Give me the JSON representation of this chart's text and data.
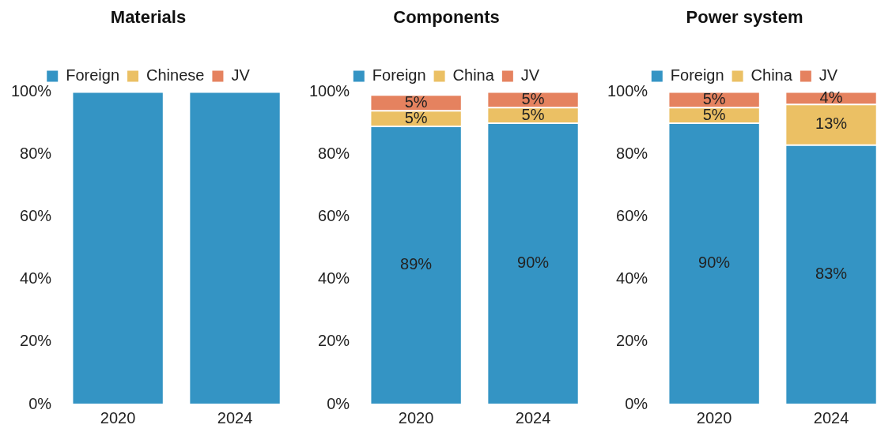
{
  "chart_data": [
    {
      "type": "bar",
      "title": "Materials",
      "categories": [
        "2020",
        "2024"
      ],
      "stacked": true,
      "legend": "top",
      "grid": false,
      "ylim": [
        0,
        100
      ],
      "yticks": [
        {
          "value": 0,
          "label": "0%"
        },
        {
          "value": 20,
          "label": "20%"
        },
        {
          "value": 40,
          "label": "40%"
        },
        {
          "value": 60,
          "label": "60%"
        },
        {
          "value": 80,
          "label": "80%"
        },
        {
          "value": 100,
          "label": "100%"
        }
      ],
      "series": [
        {
          "name": "Foreign",
          "color": "#3494c4",
          "values": [
            100,
            100
          ]
        },
        {
          "name": "Chinese",
          "color": "#ebc064",
          "values": [
            0,
            0
          ]
        },
        {
          "name": "JV",
          "color": "#e5825f",
          "values": [
            0,
            0
          ]
        }
      ]
    },
    {
      "type": "bar",
      "title": "Components",
      "categories": [
        "2020",
        "2024"
      ],
      "stacked": true,
      "legend": "top",
      "grid": false,
      "ylim": [
        0,
        100
      ],
      "yticks": [
        {
          "value": 0,
          "label": "0%"
        },
        {
          "value": 20,
          "label": "20%"
        },
        {
          "value": 40,
          "label": "40%"
        },
        {
          "value": 60,
          "label": "60%"
        },
        {
          "value": 80,
          "label": "80%"
        },
        {
          "value": 100,
          "label": "100%"
        }
      ],
      "series": [
        {
          "name": "Foreign",
          "color": "#3494c4",
          "values": [
            89,
            90
          ],
          "value_labels": [
            "89%",
            "90%"
          ]
        },
        {
          "name": "China",
          "color": "#ebc064",
          "values": [
            5,
            5
          ],
          "value_labels": [
            "5%",
            "5%"
          ]
        },
        {
          "name": "JV",
          "color": "#e5825f",
          "values": [
            5,
            5
          ],
          "value_labels": [
            "5%",
            "5%"
          ]
        }
      ]
    },
    {
      "type": "bar",
      "title": "Power system",
      "categories": [
        "2020",
        "2024"
      ],
      "stacked": true,
      "legend": "top",
      "grid": false,
      "ylim": [
        0,
        100
      ],
      "yticks": [
        {
          "value": 0,
          "label": "0%"
        },
        {
          "value": 20,
          "label": "20%"
        },
        {
          "value": 40,
          "label": "40%"
        },
        {
          "value": 60,
          "label": "60%"
        },
        {
          "value": 80,
          "label": "80%"
        },
        {
          "value": 100,
          "label": "100%"
        }
      ],
      "series": [
        {
          "name": "Foreign",
          "color": "#3494c4",
          "values": [
            90,
            83
          ],
          "value_labels": [
            "90%",
            "83%"
          ]
        },
        {
          "name": "China",
          "color": "#ebc064",
          "values": [
            5,
            13
          ],
          "value_labels": [
            "5%",
            "13%"
          ]
        },
        {
          "name": "JV",
          "color": "#e5825f",
          "values": [
            5,
            4
          ],
          "value_labels": [
            "5%",
            "4%"
          ]
        }
      ]
    }
  ]
}
